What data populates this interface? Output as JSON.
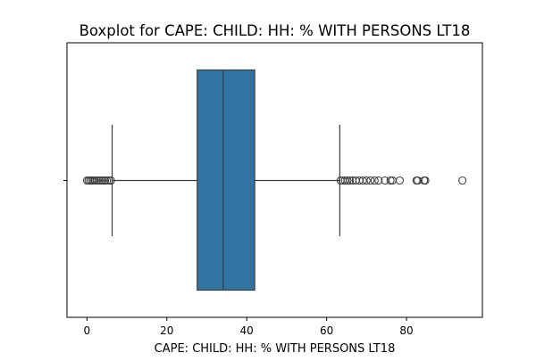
{
  "chart_data": {
    "type": "boxplot",
    "orientation": "horizontal",
    "title": "Boxplot for CAPE: CHILD: HH: % WITH PERSONS LT18",
    "xlabel": "CAPE: CHILD: HH: % WITH PERSONS LT18",
    "ylabel": "",
    "xlim": [
      -5,
      99
    ],
    "x_ticks": [
      0,
      20,
      40,
      60,
      80
    ],
    "x_tick_labels": [
      "0",
      "20",
      "40",
      "60",
      "80"
    ],
    "box": {
      "color": "#3274a1",
      "whisker_low": 6.3,
      "q1": 27.6,
      "median": 34.1,
      "q3": 42.0,
      "whisker_high": 63.3
    },
    "outliers": [
      0.0,
      0.4,
      0.8,
      1.2,
      1.6,
      2.0,
      2.5,
      3.0,
      3.5,
      4.0,
      4.5,
      5.0,
      5.5,
      6.0,
      63.5,
      64.0,
      64.6,
      65.2,
      65.8,
      66.5,
      67.3,
      68.2,
      69.1,
      70.0,
      71.0,
      72.0,
      73.0,
      74.6,
      76.0,
      76.5,
      78.3,
      82.5,
      82.8,
      84.4,
      84.7,
      94.0
    ],
    "grid": false,
    "legend": "none"
  }
}
